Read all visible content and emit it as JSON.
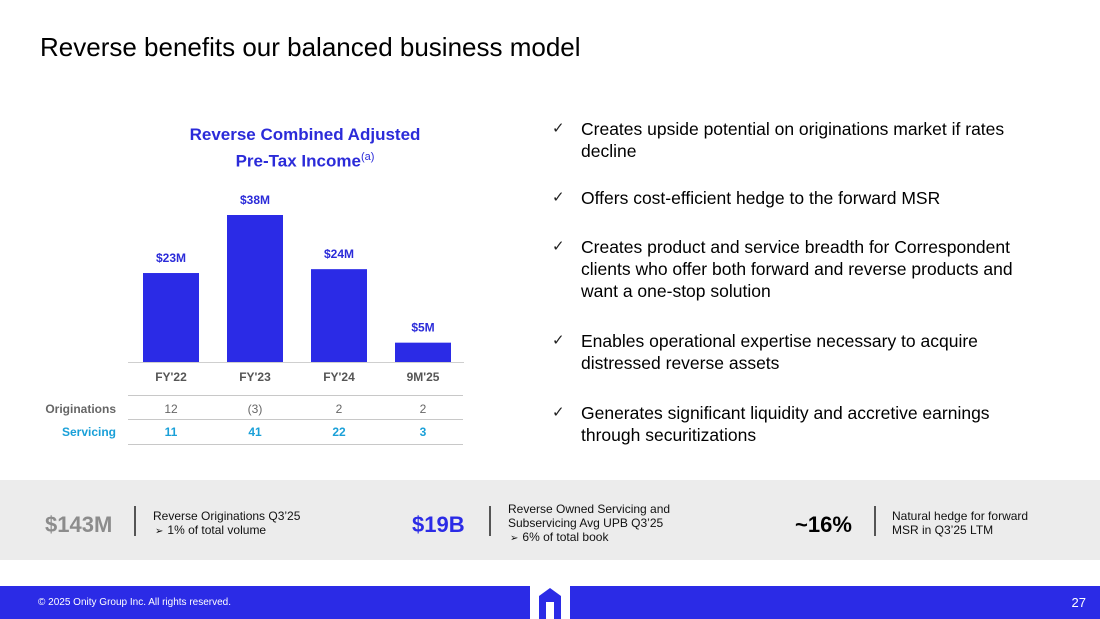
{
  "slide": {
    "title": "Reverse benefits our balanced business model"
  },
  "chart_data": {
    "type": "bar",
    "title": "Reverse Combined Adjusted Pre-Tax Income",
    "title_line1": "Reverse Combined Adjusted",
    "title_line2": "Pre-Tax Income",
    "title_footnote": "(a)",
    "categories": [
      "FY'22",
      "FY'23",
      "FY'24",
      "9M'25"
    ],
    "values": [
      23,
      38,
      24,
      5
    ],
    "data_labels": [
      "$23M",
      "$38M",
      "$24M",
      "$5M"
    ],
    "unit": "$M",
    "ylim": [
      0,
      40
    ],
    "grid": false,
    "bar_color": "#2b2be6",
    "label_color": "#2b2bd9",
    "table": {
      "rows": [
        {
          "label": "Originations",
          "values": [
            "12",
            "(3)",
            "2",
            "2"
          ],
          "color": "#666666"
        },
        {
          "label": "Servicing",
          "values": [
            "11",
            "41",
            "22",
            "3"
          ],
          "color": "#1aa0d8"
        }
      ]
    }
  },
  "bullets": [
    {
      "check": "✓",
      "text": "Creates upside potential on originations market if rates decline"
    },
    {
      "check": "✓",
      "text": "Offers cost-efficient hedge to the forward MSR"
    },
    {
      "check": "✓",
      "text": "Creates product and service breadth for Correspondent clients who offer both forward and reverse products and want a one-stop solution"
    },
    {
      "check": "✓",
      "text": "Enables operational expertise necessary to acquire distressed reverse assets"
    },
    {
      "check": "✓",
      "text": "Generates significant liquidity and accretive earnings through securitizations"
    }
  ],
  "stats": [
    {
      "value": "$143M",
      "color": "#8c8c8c",
      "line1": "Reverse Originations Q3’25",
      "line2": "",
      "sub": "1% of total volume"
    },
    {
      "value": "$19B",
      "color": "#2b2be6",
      "line1": "Reverse Owned Servicing and",
      "line2": "Subservicing Avg UPB Q3’25",
      "sub": "6% of total book"
    },
    {
      "value": "~16%",
      "color": "#000000",
      "line1": "Natural hedge for forward",
      "line2": "MSR in Q3’25 LTM",
      "sub": ""
    }
  ],
  "footer": {
    "copyright": "© 2025 Onity Group Inc. All rights reserved.",
    "page_number": "27",
    "logo_icon": "onity-logo-icon",
    "color": "#2b2be6"
  }
}
